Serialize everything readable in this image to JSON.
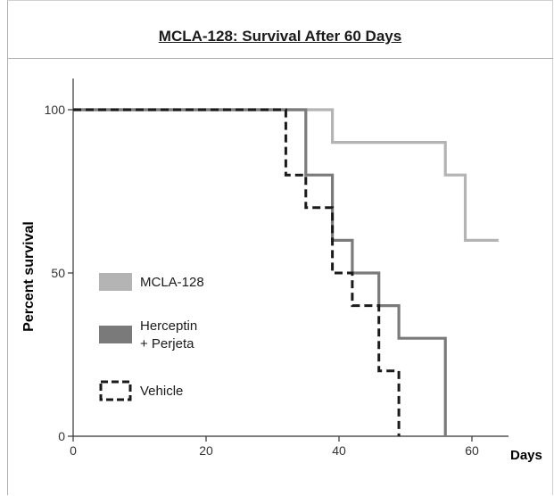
{
  "chart_data": {
    "type": "line",
    "step": true,
    "title": "MCLA-128: Survival After 60 Days",
    "xlabel": "Days",
    "ylabel": "Percent survival",
    "xlim": [
      0,
      66
    ],
    "ylim": [
      0,
      100
    ],
    "xticks": [
      "0",
      "20",
      "40",
      "60"
    ],
    "yticks": [
      "0",
      "50",
      "100"
    ],
    "legend_position": "left",
    "series": [
      {
        "name": "MCLA-128",
        "color": "#b4b4b4",
        "style": "solid",
        "points": [
          [
            0,
            100
          ],
          [
            39,
            100
          ],
          [
            39,
            90
          ],
          [
            56,
            90
          ],
          [
            56,
            80
          ],
          [
            59,
            80
          ],
          [
            59,
            60
          ],
          [
            64,
            60
          ]
        ]
      },
      {
        "name": "Herceptin\n+ Perjeta",
        "color": "#7a7a7a",
        "style": "solid",
        "points": [
          [
            0,
            100
          ],
          [
            35,
            100
          ],
          [
            35,
            80
          ],
          [
            39,
            80
          ],
          [
            39,
            60
          ],
          [
            42,
            60
          ],
          [
            42,
            50
          ],
          [
            46,
            50
          ],
          [
            46,
            40
          ],
          [
            49,
            40
          ],
          [
            49,
            30
          ],
          [
            56,
            30
          ],
          [
            56,
            0
          ]
        ]
      },
      {
        "name": "Vehicle",
        "color": "#1a1a1a",
        "style": "dashed",
        "points": [
          [
            0,
            100
          ],
          [
            32,
            100
          ],
          [
            32,
            80
          ],
          [
            35,
            80
          ],
          [
            35,
            70
          ],
          [
            39,
            70
          ],
          [
            39,
            50
          ],
          [
            42,
            50
          ],
          [
            42,
            40
          ],
          [
            46,
            40
          ],
          [
            46,
            20
          ],
          [
            49,
            20
          ],
          [
            49,
            0
          ]
        ]
      }
    ]
  }
}
